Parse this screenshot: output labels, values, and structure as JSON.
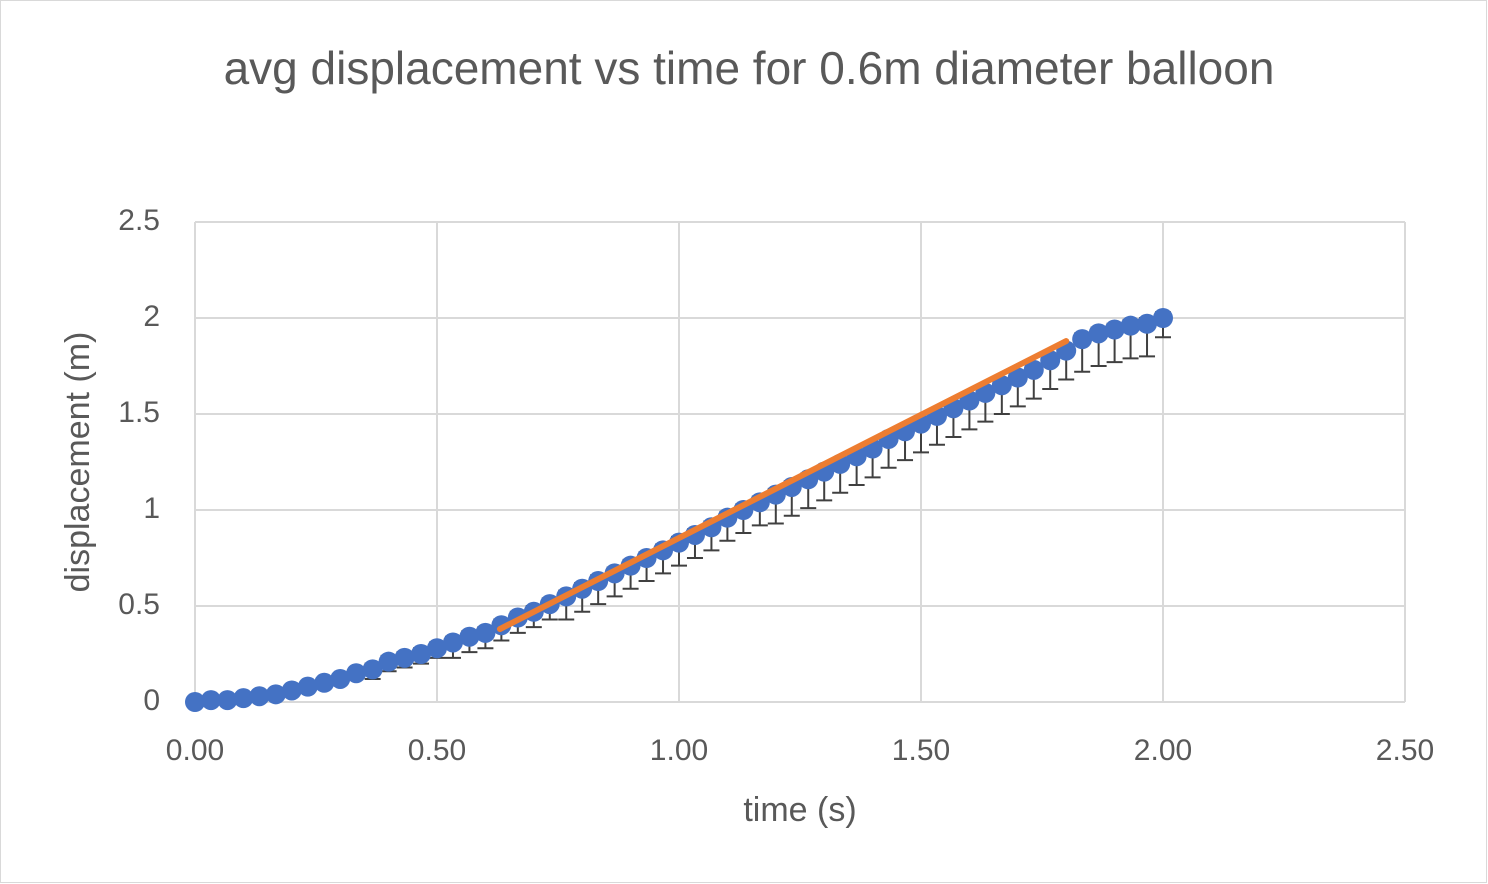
{
  "chart_data": {
    "type": "scatter",
    "title": "avg displacement vs time for 0.6m diameter balloon",
    "x_label": "time (s)",
    "y_label": "displacement (m)",
    "xlim": [
      0,
      2.5
    ],
    "xticks": [
      {
        "value": 0,
        "label": "0.00"
      },
      {
        "value": 0.5,
        "label": "0.50"
      },
      {
        "value": 1,
        "label": "1.00"
      },
      {
        "value": 1.5,
        "label": "1.50"
      },
      {
        "value": 2,
        "label": "2.00"
      },
      {
        "value": 2.5,
        "label": "2.50"
      }
    ],
    "ylim": [
      0,
      2.5
    ],
    "yticks": [
      0,
      0.5,
      1,
      1.5,
      2,
      2.5
    ],
    "grid": true,
    "series": [
      {
        "type": "scatter",
        "color": "#4472c4",
        "x": [
          0,
          0.033,
          0.067,
          0.1,
          0.133,
          0.167,
          0.2,
          0.233,
          0.267,
          0.3,
          0.333,
          0.367,
          0.4,
          0.433,
          0.467,
          0.5,
          0.533,
          0.567,
          0.6,
          0.633,
          0.667,
          0.7,
          0.733,
          0.767,
          0.8,
          0.833,
          0.867,
          0.9,
          0.933,
          0.967,
          1,
          1.033,
          1.067,
          1.1,
          1.133,
          1.167,
          1.2,
          1.233,
          1.267,
          1.3,
          1.333,
          1.367,
          1.4,
          1.433,
          1.467,
          1.5,
          1.533,
          1.567,
          1.6,
          1.633,
          1.667,
          1.7,
          1.733,
          1.767,
          1.8,
          1.833,
          1.867,
          1.9,
          1.933,
          1.967,
          2
        ],
        "values": [
          0,
          0.01,
          0.01,
          0.02,
          0.03,
          0.04,
          0.06,
          0.08,
          0.1,
          0.12,
          0.15,
          0.17,
          0.21,
          0.23,
          0.25,
          0.28,
          0.31,
          0.34,
          0.36,
          0.4,
          0.44,
          0.47,
          0.51,
          0.55,
          0.59,
          0.63,
          0.67,
          0.71,
          0.75,
          0.79,
          0.83,
          0.87,
          0.91,
          0.96,
          1,
          1.04,
          1.08,
          1.12,
          1.16,
          1.2,
          1.24,
          1.28,
          1.32,
          1.37,
          1.41,
          1.45,
          1.49,
          1.53,
          1.57,
          1.61,
          1.65,
          1.69,
          1.73,
          1.78,
          1.83,
          1.89,
          1.92,
          1.94,
          1.96,
          1.97,
          2
        ],
        "error_minus": [
          0,
          0,
          0,
          0,
          0,
          0,
          0,
          0,
          0,
          0,
          0,
          0.05,
          0.05,
          0.05,
          0.05,
          0.05,
          0.08,
          0.08,
          0.08,
          0.08,
          0.08,
          0.08,
          0.08,
          0.12,
          0.12,
          0.12,
          0.12,
          0.12,
          0.12,
          0.12,
          0.12,
          0.12,
          0.12,
          0.12,
          0.12,
          0.12,
          0.15,
          0.15,
          0.15,
          0.15,
          0.15,
          0.15,
          0.15,
          0.15,
          0.15,
          0.15,
          0.15,
          0.15,
          0.15,
          0.15,
          0.15,
          0.15,
          0.15,
          0.15,
          0.15,
          0.17,
          0.17,
          0.17,
          0.17,
          0.17,
          0.1
        ],
        "error_plus": [
          0,
          0,
          0,
          0,
          0,
          0,
          0,
          0,
          0,
          0,
          0,
          0.03,
          0.03,
          0.03,
          0.03,
          0.03,
          0.03,
          0.03,
          0.03,
          0.03,
          0.03,
          0.03,
          0.03,
          0.03,
          0.03,
          0.03,
          0.03,
          0.03,
          0.03,
          0.03,
          0.03,
          0.03,
          0.03,
          0.03,
          0.03,
          0.03,
          0.03,
          0.03,
          0.03,
          0.03,
          0.03,
          0.03,
          0.03,
          0.03,
          0.03,
          0.03,
          0.03,
          0.03,
          0.03,
          0.03,
          0.03,
          0.03,
          0.03,
          0.03,
          0.03,
          0.03,
          0.03,
          0.03,
          0.03,
          0.03,
          0.03
        ]
      },
      {
        "type": "line",
        "color": "#ed7d31",
        "x": [
          0.63,
          1.8
        ],
        "values": [
          0.38,
          1.88
        ]
      }
    ]
  }
}
